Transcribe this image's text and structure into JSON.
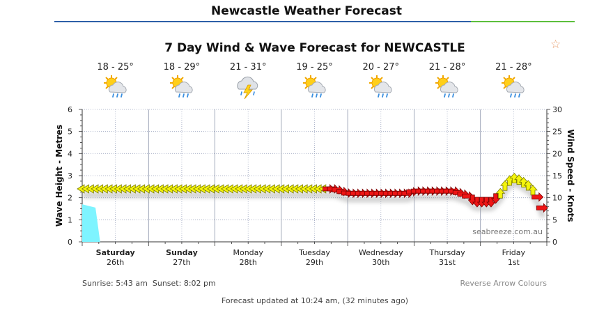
{
  "page": {
    "title": "Newcastle Weather Forecast",
    "favourite_icon": "star-outline-icon"
  },
  "chart_data": {
    "type": "line",
    "title": "7 Day Wind & Wave Forecast for NEWCASTLE",
    "ylabel_left": "Wave Height - Metres",
    "ylabel_right": "Wind Speed - Knots",
    "ylim_left": [
      0,
      6
    ],
    "ylim_right": [
      0,
      30
    ],
    "yticks_left": [
      "0",
      "1",
      "2",
      "3",
      "4",
      "5",
      "6"
    ],
    "yticks_right": [
      "0",
      "5",
      "10",
      "15",
      "20",
      "25",
      "30"
    ],
    "grid": true,
    "watermark": "seabreeze.com.au",
    "days": [
      {
        "day": "Saturday",
        "date": "26th",
        "bold": true,
        "temp": "18 - 25°",
        "icon": "sun-cloud-rain-icon"
      },
      {
        "day": "Sunday",
        "date": "27th",
        "bold": true,
        "temp": "18 - 29°",
        "icon": "sun-cloud-rain-icon"
      },
      {
        "day": "Monday",
        "date": "28th",
        "bold": false,
        "temp": "21 - 31°",
        "icon": "thunderstorm-icon"
      },
      {
        "day": "Tuesday",
        "date": "29th",
        "bold": false,
        "temp": "19 - 25°",
        "icon": "sun-cloud-rain-icon"
      },
      {
        "day": "Wednesday",
        "date": "30th",
        "bold": false,
        "temp": "20 - 27°",
        "icon": "sun-cloud-rain-icon"
      },
      {
        "day": "Thursday",
        "date": "31st",
        "bold": false,
        "temp": "21 - 28°",
        "icon": "sun-cloud-rain-icon"
      },
      {
        "day": "Friday",
        "date": "1st",
        "bold": false,
        "temp": "21 - 28°",
        "icon": "sun-cloud-rain-icon"
      }
    ],
    "wave_series": {
      "name": "Wave Height",
      "color": "#7ef4ff",
      "x_days": [
        0,
        0.2,
        0.27
      ],
      "values": [
        1.7,
        1.55,
        0
      ]
    },
    "wind_series": {
      "name": "Wind",
      "x_days": [
        0,
        0.35,
        0.7,
        1.0,
        1.5,
        2.0,
        2.5,
        3.0,
        3.5,
        3.8,
        4.0,
        4.3,
        4.6,
        4.9,
        5.0,
        5.3,
        5.6,
        5.8,
        5.92,
        6.05,
        6.18,
        6.3,
        6.4,
        6.5,
        6.6,
        6.75,
        6.85,
        6.95
      ],
      "values": [
        12,
        12,
        12,
        12,
        12,
        12,
        12,
        12,
        12,
        12,
        11,
        11,
        11,
        11,
        11.5,
        11.5,
        11.5,
        10.5,
        9,
        9,
        9,
        11,
        13.5,
        14.5,
        14,
        12.5,
        10.5,
        7
      ],
      "arrow_color": [
        "y",
        "y",
        "y",
        "y",
        "y",
        "y",
        "y",
        "y",
        "y",
        "r",
        "r",
        "r",
        "r",
        "r",
        "r",
        "r",
        "r",
        "r",
        "r",
        "r",
        "r",
        "y",
        "y",
        "y",
        "y",
        "y",
        "r",
        "r"
      ]
    }
  },
  "footer": {
    "sunrise": "Sunrise: 5:43 am",
    "sunset": "Sunset: 8:02 pm",
    "reverse_colours": "Reverse Arrow Colours",
    "updated": "Forecast updated at 10:24 am, (32 minutes ago)"
  }
}
